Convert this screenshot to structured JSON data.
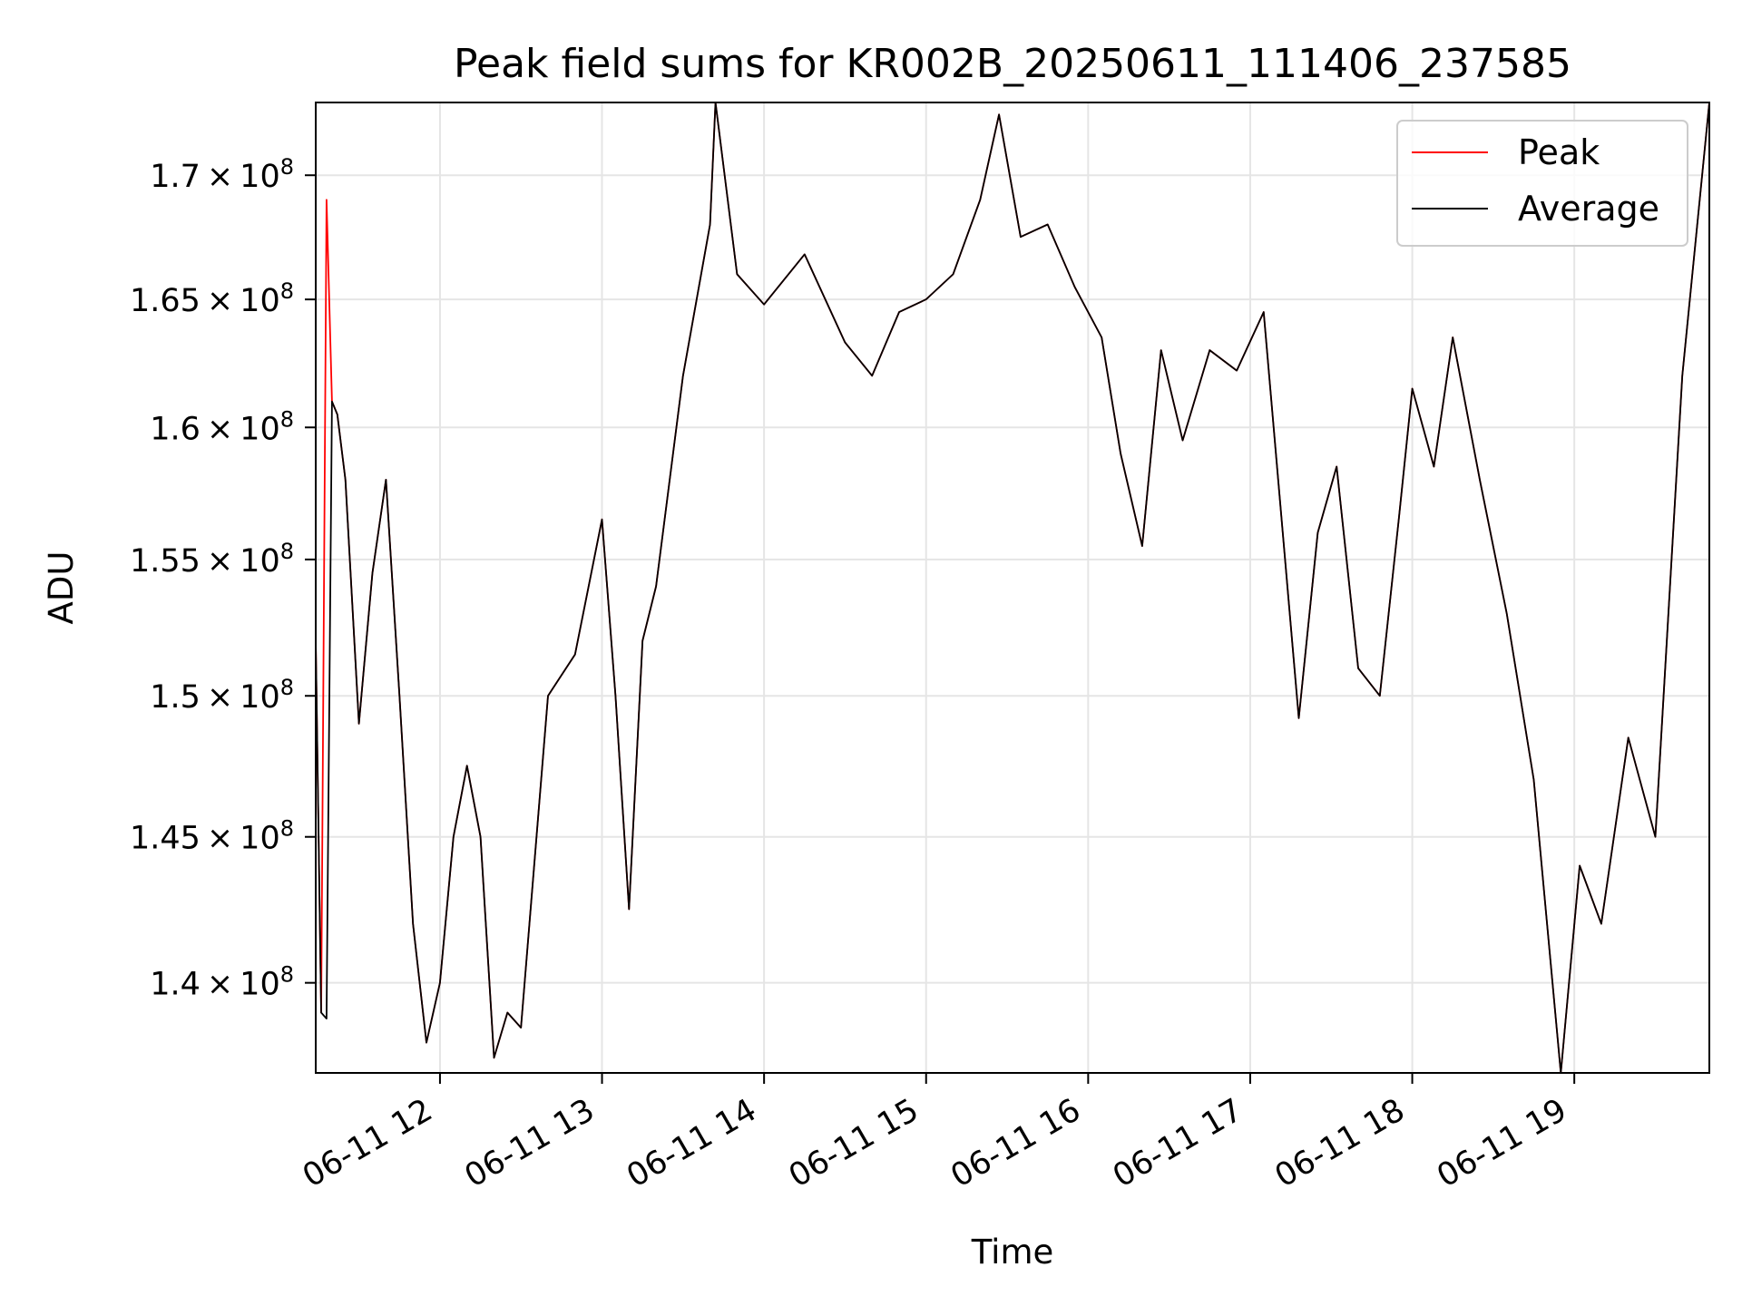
{
  "chart_data": {
    "type": "line",
    "title": "Peak field sums for KR002B_20250611_111406_237585",
    "xlabel": "Time",
    "ylabel": "ADU",
    "x_tick_labels": [
      "06-11 12",
      "06-11 13",
      "06-11 14",
      "06-11 15",
      "06-11 16",
      "06-11 17",
      "06-11 18",
      "06-11 19"
    ],
    "y_tick_labels": [
      {
        "base": "1.4",
        "exp": "8"
      },
      {
        "base": "1.45",
        "exp": "8"
      },
      {
        "base": "1.5",
        "exp": "8"
      },
      {
        "base": "1.55",
        "exp": "8"
      },
      {
        "base": "1.6",
        "exp": "8"
      },
      {
        "base": "1.65",
        "exp": "8"
      },
      {
        "base": "1.7",
        "exp": "8"
      }
    ],
    "y_ticks": [
      140000000,
      145000000,
      150000000,
      155000000,
      160000000,
      165000000,
      170000000
    ],
    "xlim": [
      "2025-06-11 11:14",
      "2025-06-11 19:50"
    ],
    "ylim": [
      137000000,
      173000000
    ],
    "y_scale": "log",
    "grid": true,
    "legend_position": "top-right",
    "x": [
      "2025-06-11 11:14",
      "2025-06-11 11:16",
      "2025-06-11 11:18",
      "2025-06-11 11:20",
      "2025-06-11 11:22",
      "2025-06-11 11:25",
      "2025-06-11 11:30",
      "2025-06-11 11:35",
      "2025-06-11 11:40",
      "2025-06-11 11:45",
      "2025-06-11 11:50",
      "2025-06-11 11:55",
      "2025-06-11 12:00",
      "2025-06-11 12:05",
      "2025-06-11 12:10",
      "2025-06-11 12:15",
      "2025-06-11 12:20",
      "2025-06-11 12:25",
      "2025-06-11 12:30",
      "2025-06-11 12:40",
      "2025-06-11 12:50",
      "2025-06-11 13:00",
      "2025-06-11 13:05",
      "2025-06-11 13:10",
      "2025-06-11 13:15",
      "2025-06-11 13:20",
      "2025-06-11 13:30",
      "2025-06-11 13:40",
      "2025-06-11 13:42",
      "2025-06-11 13:50",
      "2025-06-11 14:00",
      "2025-06-11 14:15",
      "2025-06-11 14:30",
      "2025-06-11 14:40",
      "2025-06-11 14:50",
      "2025-06-11 15:00",
      "2025-06-11 15:10",
      "2025-06-11 15:20",
      "2025-06-11 15:27",
      "2025-06-11 15:35",
      "2025-06-11 15:45",
      "2025-06-11 15:55",
      "2025-06-11 16:05",
      "2025-06-11 16:12",
      "2025-06-11 16:20",
      "2025-06-11 16:27",
      "2025-06-11 16:35",
      "2025-06-11 16:45",
      "2025-06-11 16:55",
      "2025-06-11 17:05",
      "2025-06-11 17:18",
      "2025-06-11 17:25",
      "2025-06-11 17:32",
      "2025-06-11 17:40",
      "2025-06-11 17:48",
      "2025-06-11 17:55",
      "2025-06-11 18:00",
      "2025-06-11 18:08",
      "2025-06-11 18:15",
      "2025-06-11 18:25",
      "2025-06-11 18:35",
      "2025-06-11 18:45",
      "2025-06-11 18:55",
      "2025-06-11 19:02",
      "2025-06-11 19:10",
      "2025-06-11 19:20",
      "2025-06-11 19:30",
      "2025-06-11 19:40",
      "2025-06-11 19:50"
    ],
    "series": [
      {
        "name": "Peak",
        "color": "#ff0000",
        "values": [
          152000000,
          139000000,
          169000000,
          161000000,
          160500000,
          158000000,
          149000000,
          154500000,
          158000000,
          150000000,
          142000000,
          138000000,
          140000000,
          145000000,
          147500000,
          145000000,
          137500000,
          139000000,
          138500000,
          150000000,
          151500000,
          156500000,
          150000000,
          142500000,
          152000000,
          154000000,
          162000000,
          168000000,
          173000000,
          166000000,
          164800000,
          166800000,
          163300000,
          162000000,
          164500000,
          165000000,
          166000000,
          169000000,
          172500000,
          167500000,
          168000000,
          165500000,
          163500000,
          159000000,
          155500000,
          163000000,
          159500000,
          163000000,
          162200000,
          164500000,
          149200000,
          156000000,
          158500000,
          151000000,
          150000000,
          156500000,
          161500000,
          158500000,
          163500000,
          158000000,
          153000000,
          147000000,
          137000000,
          144000000,
          142000000,
          148500000,
          145000000,
          162000000,
          173000000
        ]
      },
      {
        "name": "Average",
        "color": "#000000",
        "values": [
          152000000,
          139000000,
          138800000,
          161000000,
          160500000,
          158000000,
          149000000,
          154500000,
          158000000,
          150000000,
          142000000,
          138000000,
          140000000,
          145000000,
          147500000,
          145000000,
          137500000,
          139000000,
          138500000,
          150000000,
          151500000,
          156500000,
          150000000,
          142500000,
          152000000,
          154000000,
          162000000,
          168000000,
          173000000,
          166000000,
          164800000,
          166800000,
          163300000,
          162000000,
          164500000,
          165000000,
          166000000,
          169000000,
          172500000,
          167500000,
          168000000,
          165500000,
          163500000,
          159000000,
          155500000,
          163000000,
          159500000,
          163000000,
          162200000,
          164500000,
          149200000,
          156000000,
          158500000,
          151000000,
          150000000,
          156500000,
          161500000,
          158500000,
          163500000,
          158000000,
          153000000,
          147000000,
          137000000,
          144000000,
          142000000,
          148500000,
          145000000,
          162000000,
          173000000
        ]
      }
    ]
  }
}
